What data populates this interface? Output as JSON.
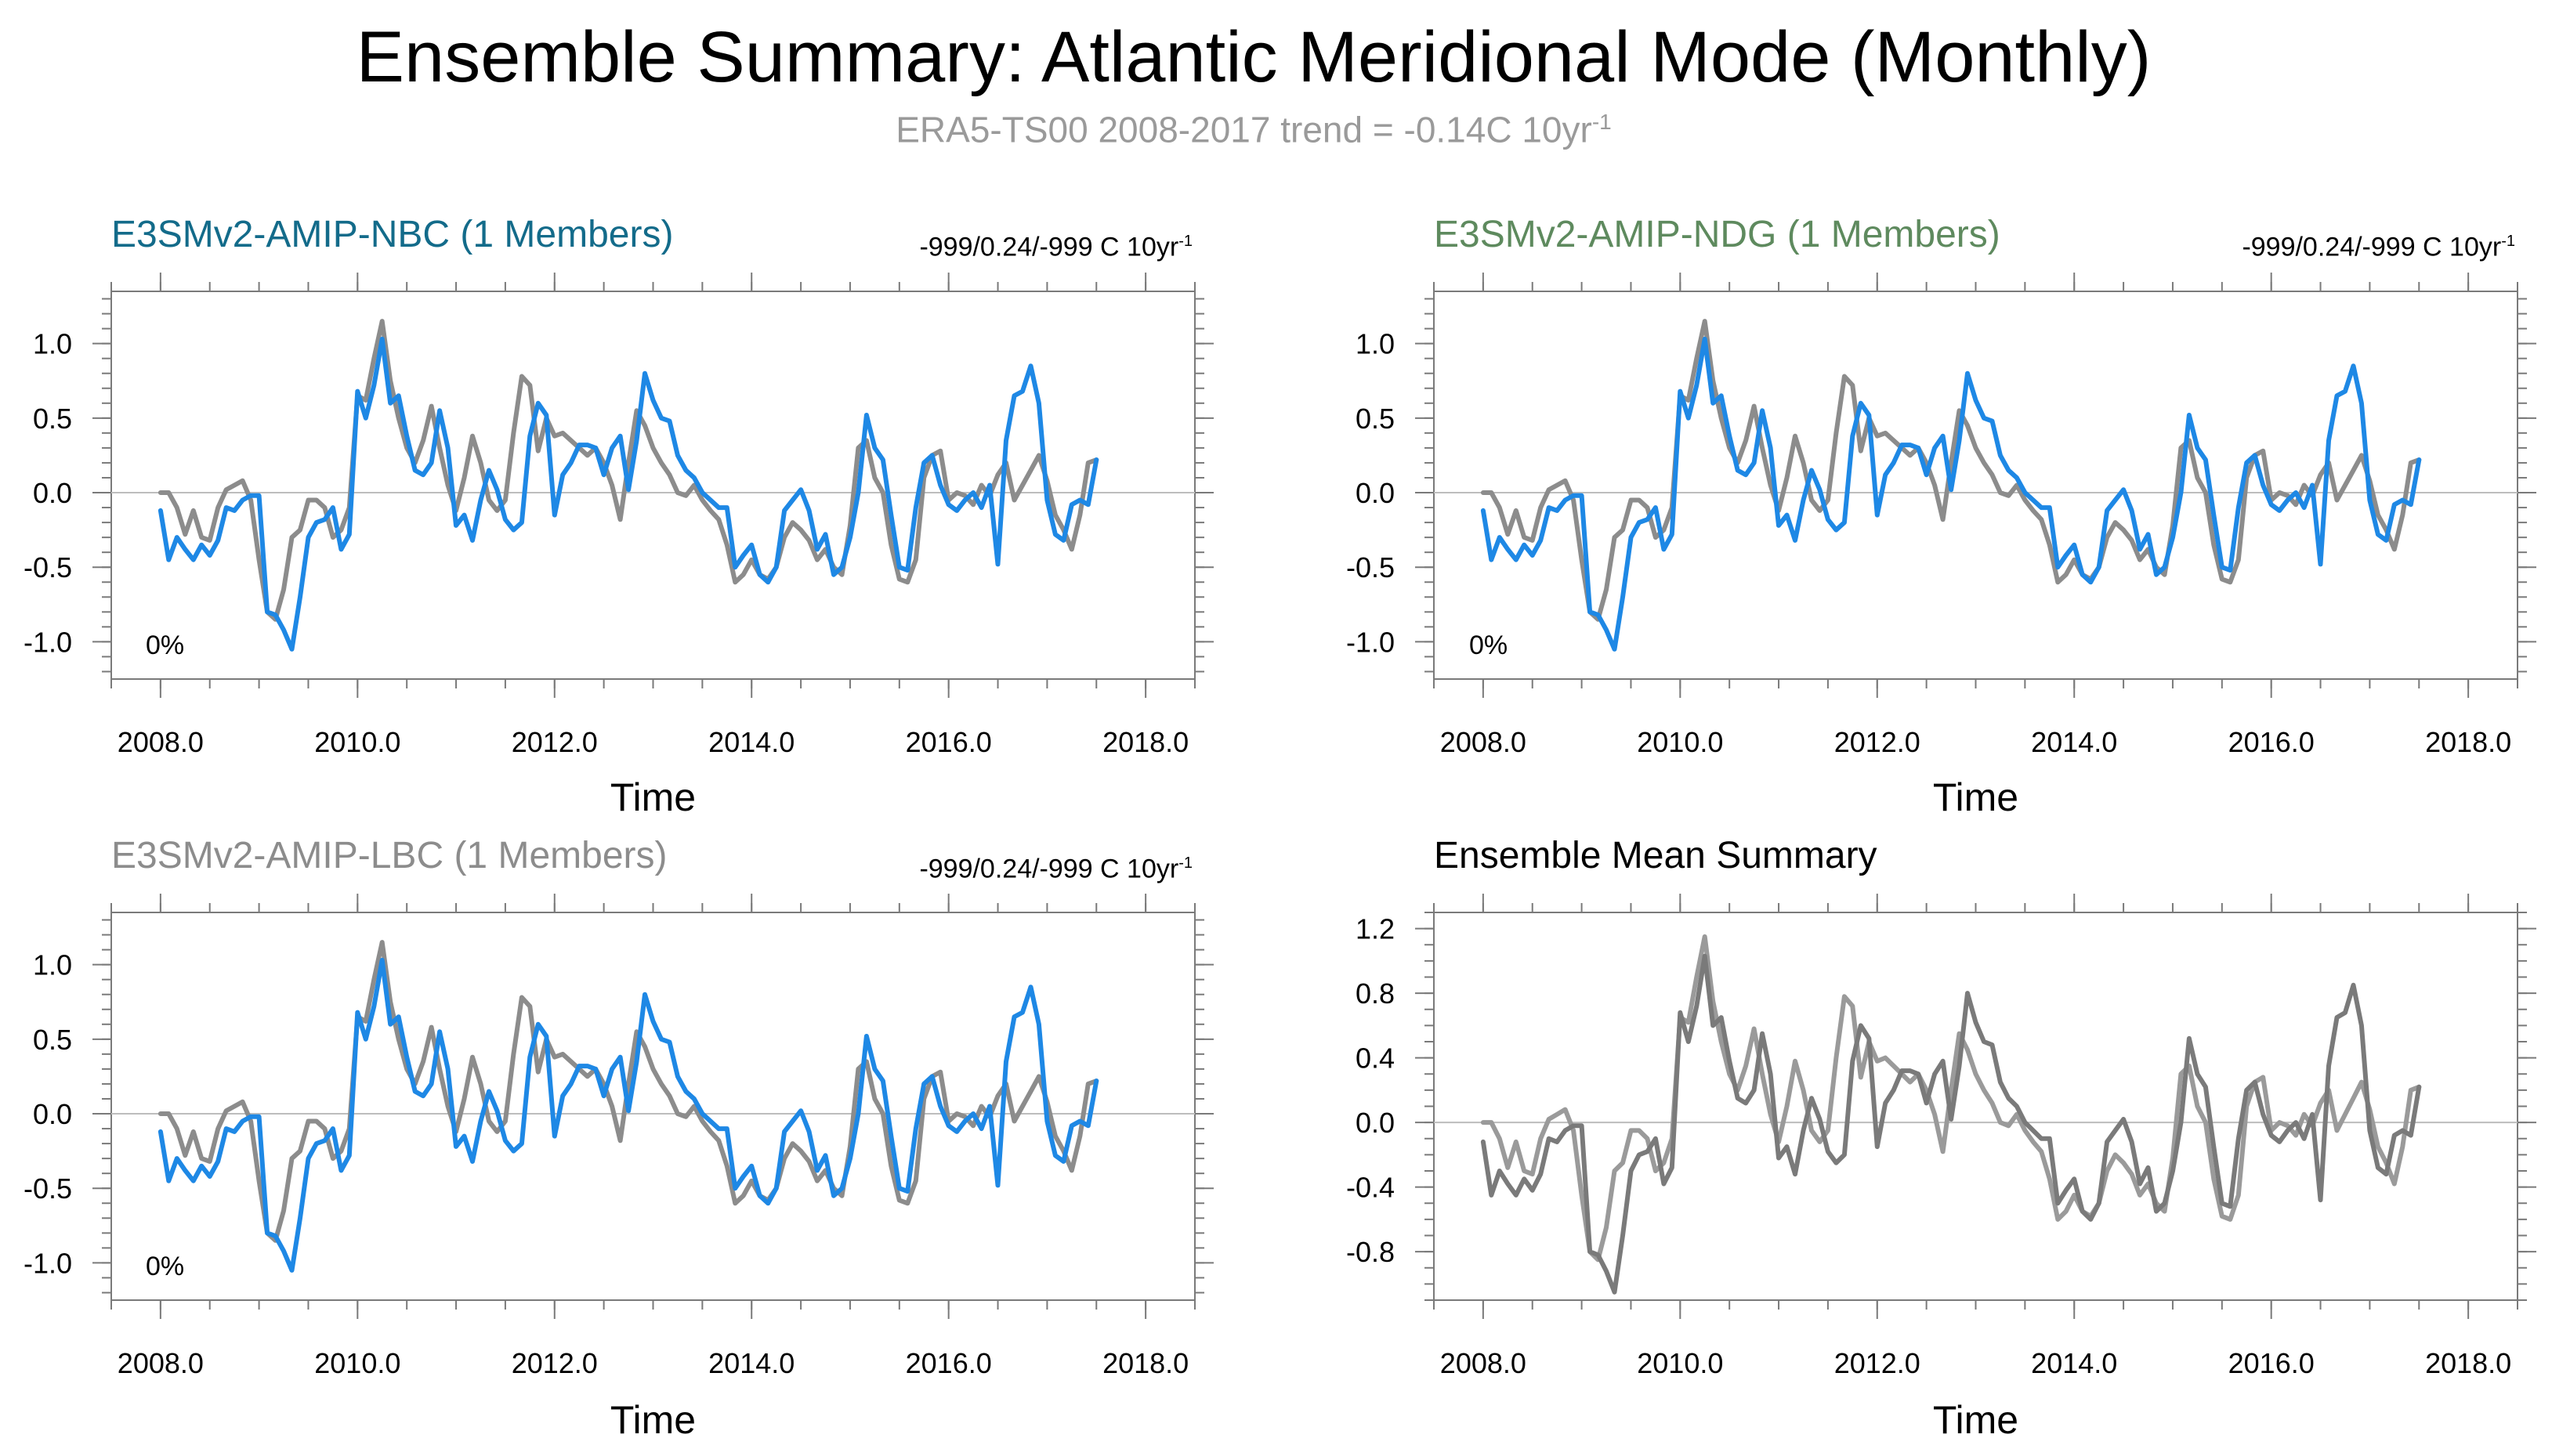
{
  "title": "Ensemble Summary: Atlantic Meridional Mode (Monthly)",
  "subtitle": {
    "text": "ERA5-TS00 2008-2017 trend = -0.14C 10yr",
    "superscript": "-1"
  },
  "colors": {
    "obs": "#8c8c8c",
    "model": "#1e88e5",
    "mean": "#7a7a7a",
    "nbc_title": "#136b8a",
    "ndg_title": "#5e8a5e",
    "lbc_title": "#8c8c8c",
    "mean_title": "#000000"
  },
  "panels": [
    {
      "title": "E3SMv2-AMIP-NBC (1 Members)",
      "trend_text": "-999/0.24/-999 C 10yr",
      "trend_sup": "-1",
      "percent_label": "0%",
      "xlabel": "Time",
      "xticks": [
        "2008.0",
        "2010.0",
        "2012.0",
        "2014.0",
        "2016.0",
        "2018.0"
      ],
      "yticks": [
        "1.0",
        "0.5",
        "0.0",
        "-0.5",
        "-1.0"
      ]
    },
    {
      "title": "E3SMv2-AMIP-NDG (1 Members)",
      "trend_text": "-999/0.24/-999 C 10yr",
      "trend_sup": "-1",
      "percent_label": "0%",
      "xlabel": "Time",
      "xticks": [
        "2008.0",
        "2010.0",
        "2012.0",
        "2014.0",
        "2016.0",
        "2018.0"
      ],
      "yticks": [
        "1.0",
        "0.5",
        "0.0",
        "-0.5",
        "-1.0"
      ]
    },
    {
      "title": "E3SMv2-AMIP-LBC (1 Members)",
      "trend_text": "-999/0.24/-999 C 10yr",
      "trend_sup": "-1",
      "percent_label": "0%",
      "xlabel": "Time",
      "xticks": [
        "2008.0",
        "2010.0",
        "2012.0",
        "2014.0",
        "2016.0",
        "2018.0"
      ],
      "yticks": [
        "1.0",
        "0.5",
        "0.0",
        "-0.5",
        "-1.0"
      ]
    },
    {
      "title": "Ensemble Mean Summary",
      "xlabel": "Time",
      "xticks": [
        "2008.0",
        "2010.0",
        "2012.0",
        "2014.0",
        "2016.0",
        "2018.0"
      ],
      "yticks": [
        "1.2",
        "0.8",
        "0.4",
        "0.0",
        "-0.4",
        "-0.8"
      ]
    }
  ],
  "chart_data": [
    {
      "type": "line",
      "title": "E3SMv2-AMIP-NBC (1 Members)",
      "xlabel": "Time",
      "ylabel": "",
      "xlim": [
        2007.5,
        2018.5
      ],
      "ylim": [
        -1.25,
        1.35
      ],
      "ytick_values": [
        1.0,
        0.5,
        0.0,
        -0.5,
        -1.0
      ],
      "xtick_values": [
        2008,
        2010,
        2012,
        2014,
        2016,
        2018
      ],
      "series": [
        {
          "name": "ERA5-TS00",
          "color": "#8c8c8c",
          "ref": "obs"
        },
        {
          "name": "E3SMv2-AMIP-NBC",
          "color": "#1e88e5",
          "ref": "model"
        }
      ]
    },
    {
      "type": "line",
      "title": "E3SMv2-AMIP-NDG (1 Members)",
      "xlabel": "Time",
      "ylabel": "",
      "xlim": [
        2007.5,
        2018.5
      ],
      "ylim": [
        -1.25,
        1.35
      ],
      "ytick_values": [
        1.0,
        0.5,
        0.0,
        -0.5,
        -1.0
      ],
      "xtick_values": [
        2008,
        2010,
        2012,
        2014,
        2016,
        2018
      ],
      "series": [
        {
          "name": "ERA5-TS00",
          "color": "#8c8c8c",
          "ref": "obs"
        },
        {
          "name": "E3SMv2-AMIP-NDG",
          "color": "#1e88e5",
          "ref": "model"
        }
      ]
    },
    {
      "type": "line",
      "title": "E3SMv2-AMIP-LBC (1 Members)",
      "xlabel": "Time",
      "ylabel": "",
      "xlim": [
        2007.5,
        2018.5
      ],
      "ylim": [
        -1.25,
        1.35
      ],
      "ytick_values": [
        1.0,
        0.5,
        0.0,
        -0.5,
        -1.0
      ],
      "xtick_values": [
        2008,
        2010,
        2012,
        2014,
        2016,
        2018
      ],
      "series": [
        {
          "name": "ERA5-TS00",
          "color": "#8c8c8c",
          "ref": "obs"
        },
        {
          "name": "E3SMv2-AMIP-LBC",
          "color": "#1e88e5",
          "ref": "model"
        }
      ]
    },
    {
      "type": "line",
      "title": "Ensemble Mean Summary",
      "xlabel": "Time",
      "ylabel": "",
      "xlim": [
        2007.5,
        2018.5
      ],
      "ylim": [
        -1.1,
        1.3
      ],
      "ytick_values": [
        1.2,
        0.8,
        0.4,
        0.0,
        -0.4,
        -0.8
      ],
      "xtick_values": [
        2008,
        2010,
        2012,
        2014,
        2016,
        2018
      ],
      "series": [
        {
          "name": "ERA5-TS00",
          "color": "#9a9a9a",
          "ref": "obs"
        },
        {
          "name": "Ensemble Mean",
          "color": "#7a7a7a",
          "ref": "model"
        }
      ]
    }
  ],
  "series_values": {
    "start_year": 2008.0,
    "step": 0.0833333,
    "obs": [
      0.0,
      0.0,
      -0.1,
      -0.28,
      -0.12,
      -0.3,
      -0.32,
      -0.1,
      0.02,
      0.05,
      0.08,
      -0.05,
      -0.45,
      -0.8,
      -0.85,
      -0.65,
      -0.3,
      -0.25,
      -0.05,
      -0.05,
      -0.1,
      -0.3,
      -0.25,
      -0.1,
      0.65,
      0.62,
      0.9,
      1.15,
      0.75,
      0.5,
      0.3,
      0.2,
      0.35,
      0.58,
      0.3,
      0.05,
      -0.12,
      0.1,
      0.38,
      0.2,
      -0.05,
      -0.12,
      -0.05,
      0.4,
      0.78,
      0.72,
      0.28,
      0.5,
      0.38,
      0.4,
      0.35,
      0.3,
      0.25,
      0.3,
      0.2,
      0.05,
      -0.18,
      0.2,
      0.55,
      0.45,
      0.3,
      0.2,
      0.12,
      0.0,
      -0.02,
      0.05,
      -0.05,
      -0.12,
      -0.18,
      -0.35,
      -0.6,
      -0.55,
      -0.45,
      -0.55,
      -0.58,
      -0.5,
      -0.3,
      -0.2,
      -0.25,
      -0.32,
      -0.45,
      -0.38,
      -0.5,
      -0.55,
      -0.22,
      0.3,
      0.35,
      0.1,
      0.0,
      -0.35,
      -0.58,
      -0.6,
      -0.45,
      0.1,
      0.25,
      0.28,
      -0.05,
      0.0,
      -0.02,
      -0.08,
      0.05,
      -0.02,
      0.12,
      0.2,
      -0.05,
      0.05,
      0.15,
      0.25,
      0.08,
      -0.15,
      -0.25,
      -0.38,
      -0.15,
      0.2,
      0.22
    ],
    "model": [
      -0.12,
      -0.45,
      -0.3,
      -0.38,
      -0.45,
      -0.35,
      -0.42,
      -0.32,
      -0.1,
      -0.12,
      -0.05,
      -0.02,
      -0.02,
      -0.8,
      -0.82,
      -0.92,
      -1.05,
      -0.7,
      -0.3,
      -0.2,
      -0.18,
      -0.1,
      -0.38,
      -0.28,
      0.68,
      0.5,
      0.72,
      1.03,
      0.6,
      0.65,
      0.38,
      0.15,
      0.12,
      0.2,
      0.55,
      0.3,
      -0.22,
      -0.15,
      -0.32,
      -0.05,
      0.15,
      0.02,
      -0.18,
      -0.25,
      -0.2,
      0.38,
      0.6,
      0.52,
      -0.15,
      0.12,
      0.2,
      0.32,
      0.32,
      0.3,
      0.12,
      0.3,
      0.38,
      0.02,
      0.35,
      0.8,
      0.62,
      0.5,
      0.48,
      0.25,
      0.15,
      0.1,
      0.0,
      -0.05,
      -0.1,
      -0.1,
      -0.5,
      -0.42,
      -0.35,
      -0.55,
      -0.6,
      -0.5,
      -0.12,
      -0.05,
      0.02,
      -0.12,
      -0.38,
      -0.28,
      -0.55,
      -0.5,
      -0.3,
      0.0,
      0.52,
      0.3,
      0.22,
      -0.15,
      -0.5,
      -0.52,
      -0.1,
      0.2,
      0.25,
      0.05,
      -0.08,
      -0.12,
      -0.05,
      0.0,
      -0.1,
      0.05,
      -0.48,
      0.35,
      0.65,
      0.68,
      0.85,
      0.6,
      -0.05,
      -0.28,
      -0.32,
      -0.08,
      -0.05,
      -0.08,
      0.22
    ]
  }
}
